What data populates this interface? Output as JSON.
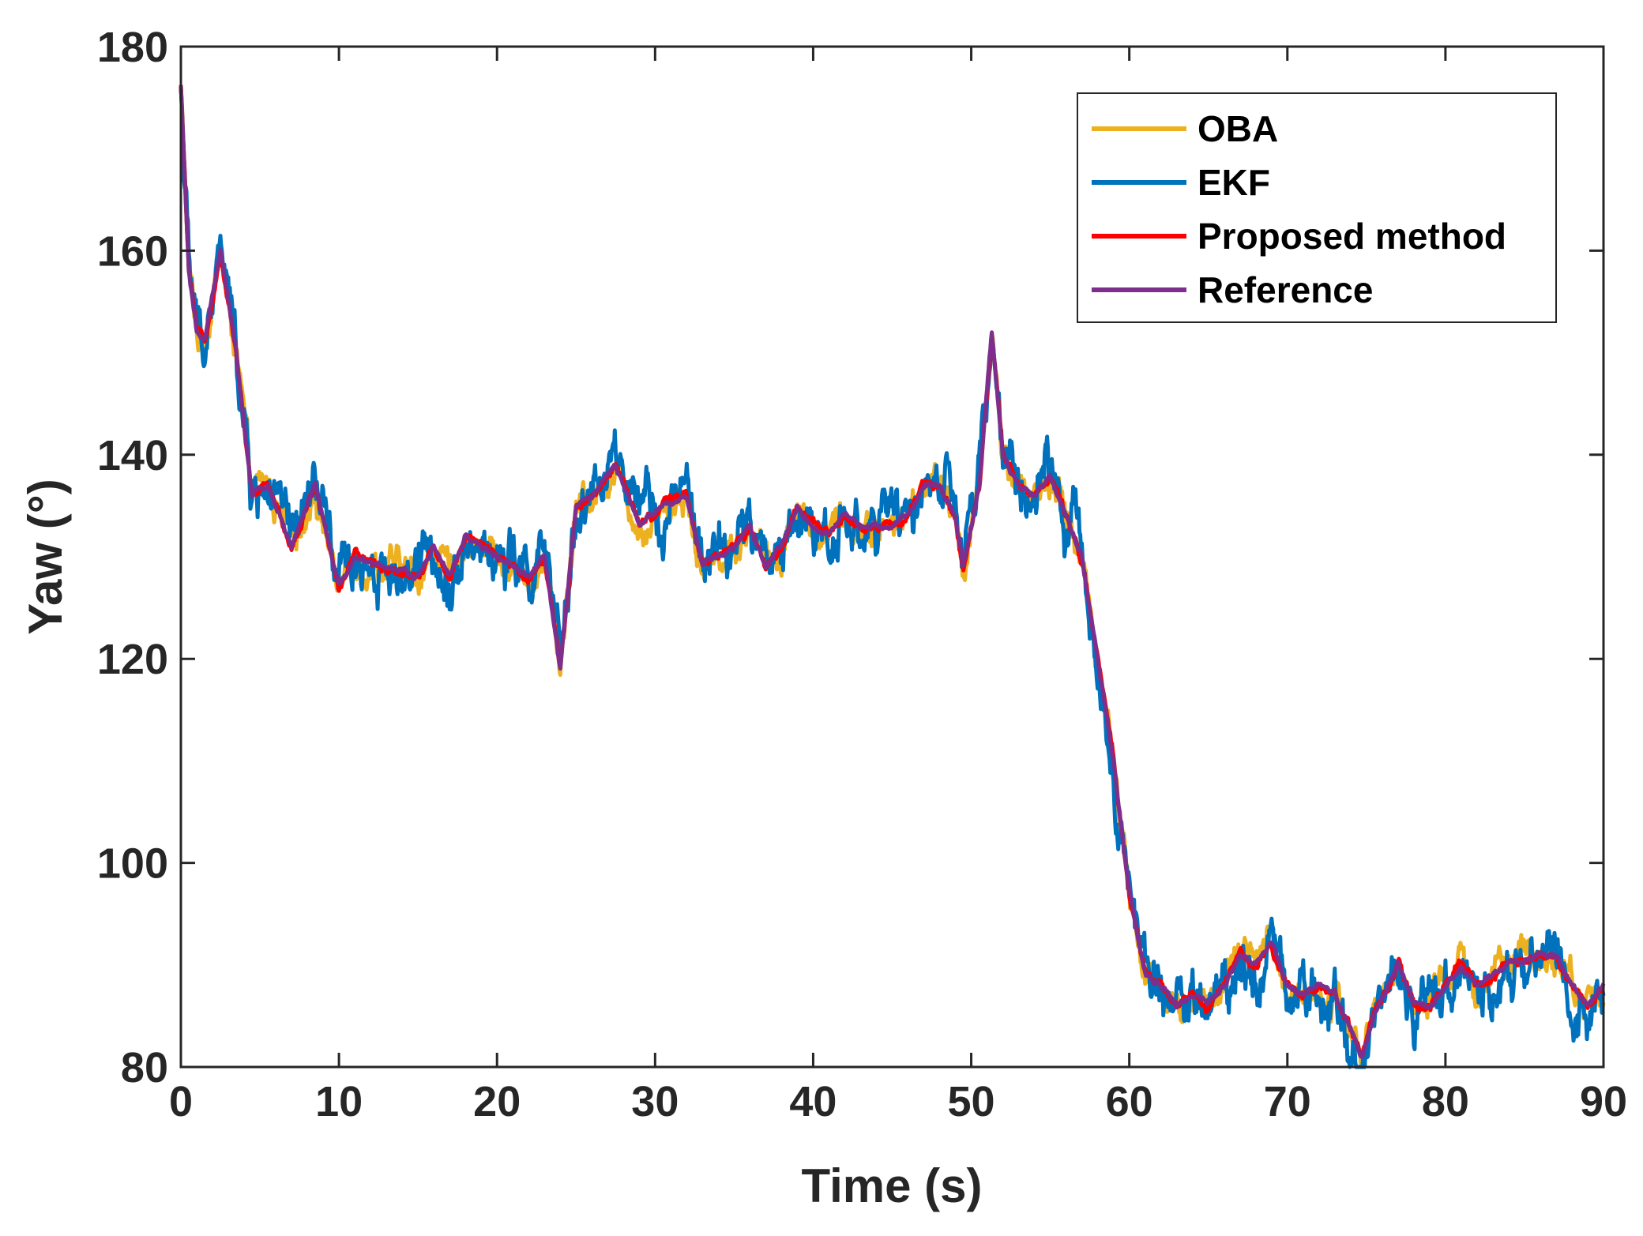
{
  "chart_data": {
    "type": "line",
    "title": "",
    "xlabel": "Time (s)",
    "ylabel": "Yaw (°)",
    "xlim": [
      0,
      90
    ],
    "ylim": [
      80,
      180
    ],
    "x_ticks": [
      0,
      10,
      20,
      30,
      40,
      50,
      60,
      70,
      80,
      90
    ],
    "y_ticks": [
      80,
      100,
      120,
      140,
      160,
      180
    ],
    "x_tick_labels": [
      "0",
      "10",
      "20",
      "30",
      "40",
      "50",
      "60",
      "70",
      "80",
      "90"
    ],
    "y_tick_labels": [
      "80",
      "100",
      "120",
      "140",
      "160",
      "180"
    ],
    "grid": false,
    "legend_position": "top-right",
    "reference_points": {
      "x": [
        0,
        0.5,
        1,
        1.5,
        2.5,
        3.5,
        4.5,
        5.5,
        7,
        8.5,
        10,
        11,
        13,
        15,
        16,
        17,
        18,
        20,
        22,
        23,
        24,
        25,
        26,
        27.5,
        29,
        30.5,
        32,
        33,
        34,
        35,
        36,
        37,
        38,
        39,
        40,
        41,
        42,
        43,
        44,
        45,
        46,
        47,
        48,
        49,
        49.5,
        50.5,
        51.3,
        52,
        53,
        54,
        55,
        56,
        57,
        58,
        59,
        60,
        61,
        62,
        63,
        64,
        65,
        66,
        67,
        68,
        69,
        70,
        71,
        72,
        73,
        74,
        74.7,
        75.5,
        77,
        78,
        79,
        80,
        81,
        82,
        83,
        84,
        86,
        87,
        88,
        89,
        90
      ],
      "y": [
        176,
        158,
        152,
        151,
        160,
        150,
        136,
        137,
        131,
        137,
        127,
        130,
        129,
        128,
        131,
        128,
        132,
        130,
        128,
        130,
        119,
        135,
        136,
        139,
        133,
        135,
        136,
        129,
        130,
        131,
        133,
        129,
        131,
        135,
        133,
        132,
        134,
        133,
        133,
        133,
        134,
        137,
        137,
        134,
        129,
        137,
        152,
        140,
        137,
        136,
        138,
        134,
        130,
        120,
        110,
        97,
        89,
        88,
        86,
        87,
        86,
        88,
        91,
        90,
        92,
        88,
        87,
        88,
        87,
        84,
        81,
        85,
        90,
        86,
        86,
        88,
        90,
        88,
        89,
        90,
        91,
        91,
        88,
        86,
        88
      ]
    },
    "noise_amplitude": [
      1.8,
      3.0,
      0.5,
      0.3
    ],
    "series": [
      {
        "name": "OBA",
        "color": "#edb120"
      },
      {
        "name": "EKF",
        "color": "#0072bd"
      },
      {
        "name": "Proposed method",
        "color": "#ff0000"
      },
      {
        "name": "Reference",
        "color": "#7e2f8e"
      }
    ]
  }
}
